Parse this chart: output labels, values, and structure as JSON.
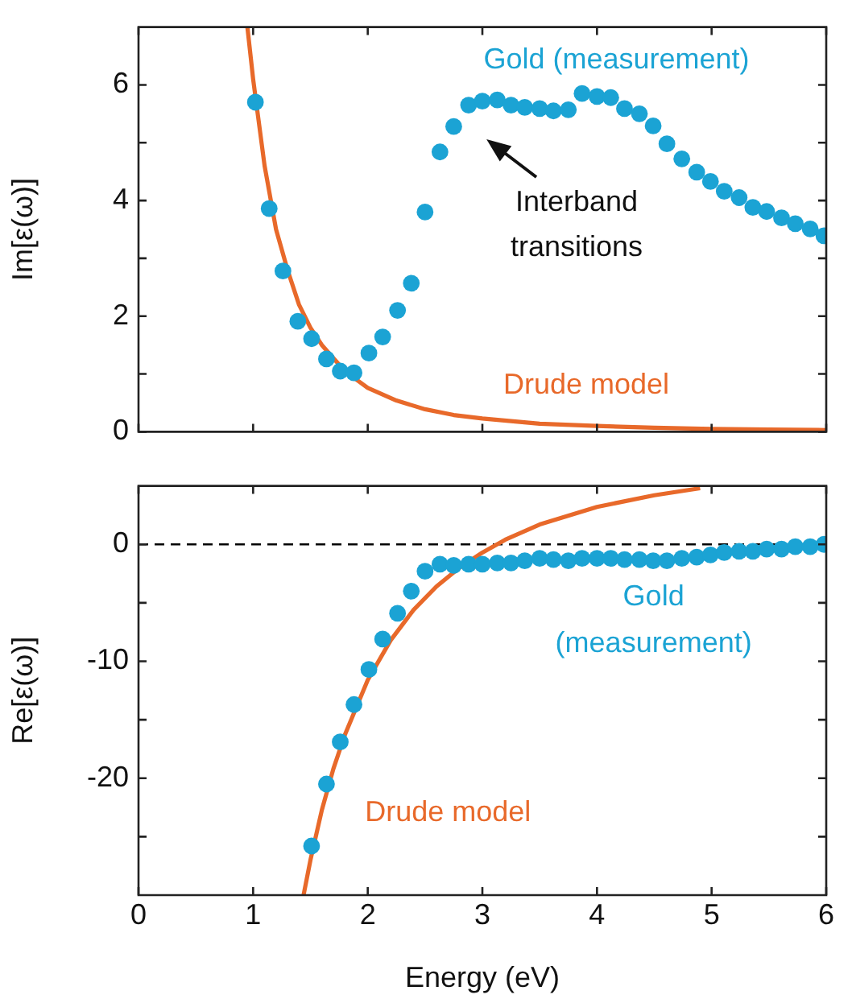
{
  "chart_data": [
    {
      "type": "scatter",
      "ylabel": "Im[ε(ω)]",
      "xlim": [
        0,
        6
      ],
      "ylim": [
        0,
        7
      ],
      "xticks": [
        0,
        1,
        2,
        3,
        4,
        5,
        6
      ],
      "yticks": [
        0,
        {
          "value": 1,
          "label": null
        },
        2,
        {
          "value": 3,
          "label": null
        },
        4,
        {
          "value": 5,
          "label": null
        },
        6
      ],
      "tick_labels": "y",
      "grid": false,
      "legend": false,
      "annotations": [
        "Interband transitions"
      ],
      "series": [
        {
          "name": "Gold (measurement)",
          "type": "scatter",
          "marker": "circle",
          "color": "#1ba3d4",
          "x": [
            1.02,
            1.14,
            1.26,
            1.39,
            1.51,
            1.64,
            1.76,
            1.88,
            2.01,
            2.13,
            2.26,
            2.38,
            2.5,
            2.63,
            2.75,
            2.88,
            3.0,
            3.13,
            3.25,
            3.37,
            3.5,
            3.62,
            3.75,
            3.87,
            4.0,
            4.12,
            4.24,
            4.37,
            4.49,
            4.61,
            4.74,
            4.87,
            4.99,
            5.11,
            5.24,
            5.36,
            5.48,
            5.61,
            5.73,
            5.86,
            5.98
          ],
          "values": [
            5.7,
            3.86,
            2.78,
            1.91,
            1.61,
            1.26,
            1.05,
            1.02,
            1.36,
            1.64,
            2.1,
            2.57,
            3.8,
            4.84,
            5.28,
            5.65,
            5.72,
            5.74,
            5.65,
            5.61,
            5.59,
            5.55,
            5.57,
            5.85,
            5.8,
            5.78,
            5.59,
            5.5,
            5.29,
            4.98,
            4.72,
            4.49,
            4.33,
            4.16,
            4.05,
            3.88,
            3.81,
            3.7,
            3.6,
            3.51,
            3.39
          ]
        },
        {
          "name": "Drude model",
          "type": "line",
          "marker": "none",
          "line_style": "solid",
          "color": "#e8692a",
          "x": [
            0.95,
            1.0,
            1.1,
            1.2,
            1.3,
            1.4,
            1.5,
            1.6,
            1.8,
            2.0,
            2.25,
            2.5,
            2.75,
            3.0,
            3.5,
            4.0,
            4.5,
            5.0,
            5.5,
            6.0
          ],
          "values": [
            7.0,
            6.1,
            4.6,
            3.5,
            2.8,
            2.2,
            1.8,
            1.5,
            1.05,
            0.76,
            0.54,
            0.39,
            0.29,
            0.23,
            0.14,
            0.1,
            0.07,
            0.05,
            0.04,
            0.03
          ]
        }
      ]
    },
    {
      "type": "scatter",
      "xlabel": "Energy (eV)",
      "ylabel": "Re[ε(ω)]",
      "xlim": [
        0,
        6
      ],
      "ylim": [
        -30,
        5
      ],
      "xticks": [
        0,
        1,
        2,
        3,
        4,
        5,
        6
      ],
      "yticks": [
        {
          "value": -25,
          "label": null
        },
        -20,
        {
          "value": -15,
          "label": null
        },
        -10,
        {
          "value": -5,
          "label": null
        },
        0
      ],
      "grid": false,
      "legend": false,
      "ref_lines": [
        {
          "axis": "y",
          "value": 0,
          "color": "#000000",
          "line_style": "dashed"
        }
      ],
      "series": [
        {
          "name": "Gold (measurement)",
          "type": "scatter",
          "marker": "circle",
          "color": "#1ba3d4",
          "x": [
            1.51,
            1.64,
            1.76,
            1.88,
            2.01,
            2.13,
            2.26,
            2.38,
            2.5,
            2.63,
            2.75,
            2.88,
            3.0,
            3.13,
            3.25,
            3.37,
            3.5,
            3.62,
            3.75,
            3.87,
            4.0,
            4.12,
            4.24,
            4.37,
            4.49,
            4.61,
            4.74,
            4.87,
            4.99,
            5.11,
            5.24,
            5.36,
            5.48,
            5.61,
            5.73,
            5.86,
            5.98
          ],
          "values": [
            -25.8,
            -20.5,
            -16.9,
            -13.7,
            -10.7,
            -8.1,
            -5.9,
            -4.0,
            -2.3,
            -1.7,
            -1.8,
            -1.7,
            -1.7,
            -1.6,
            -1.6,
            -1.4,
            -1.2,
            -1.3,
            -1.4,
            -1.2,
            -1.2,
            -1.2,
            -1.3,
            -1.3,
            -1.4,
            -1.4,
            -1.2,
            -1.1,
            -0.9,
            -0.7,
            -0.6,
            -0.6,
            -0.4,
            -0.4,
            -0.2,
            -0.2,
            0.0
          ]
        },
        {
          "name": "Drude model",
          "type": "line",
          "marker": "none",
          "line_style": "solid",
          "color": "#e8692a",
          "x": [
            1.44,
            1.5,
            1.6,
            1.7,
            1.8,
            2.0,
            2.2,
            2.4,
            2.6,
            2.8,
            3.0,
            3.2,
            3.5,
            4.0,
            4.5,
            4.9
          ],
          "values": [
            -30,
            -27,
            -22.7,
            -19.2,
            -16.3,
            -11.6,
            -8.2,
            -5.6,
            -3.6,
            -2.0,
            -0.7,
            0.4,
            1.7,
            3.2,
            4.2,
            4.8
          ]
        }
      ]
    }
  ]
}
